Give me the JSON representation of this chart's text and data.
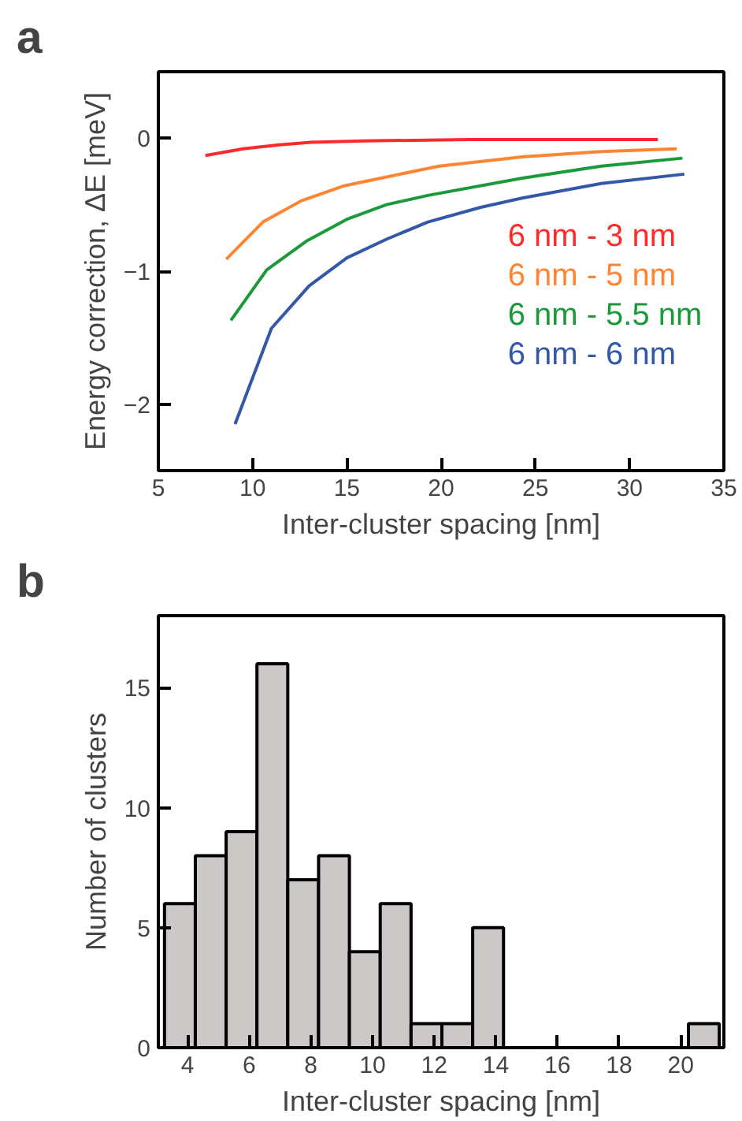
{
  "chart_data": [
    {
      "type": "line",
      "title": "a",
      "xlabel": "Inter-cluster spacing [nm]",
      "ylabel": "Energy correction, ΔE [meV]",
      "xlim": [
        5,
        35
      ],
      "ylim": [
        -2.5,
        0.5
      ],
      "xticks": [
        5,
        10,
        15,
        20,
        25,
        30,
        35
      ],
      "yticks": [
        -2,
        -1,
        0
      ],
      "grid": false,
      "legend": "center right",
      "line_style": "solid",
      "series": [
        {
          "name": "6 nm - 3 nm",
          "color": "#ff2a2a",
          "x": [
            7.5,
            9.5,
            11.4,
            13.1,
            15.9,
            21.5,
            31.5
          ],
          "values": [
            -0.13,
            -0.08,
            -0.05,
            -0.03,
            -0.02,
            -0.01,
            -0.01
          ]
        },
        {
          "name": "6 nm - 5 nm",
          "color": "#ff8533",
          "x": [
            8.6,
            10.55,
            12.6,
            14.8,
            16.8,
            19.9,
            24.3,
            28.5,
            32.5
          ],
          "values": [
            -0.91,
            -0.63,
            -0.47,
            -0.36,
            -0.3,
            -0.21,
            -0.14,
            -0.1,
            -0.08
          ]
        },
        {
          "name": "6 nm - 5.5 nm",
          "color": "#1a9a3a",
          "x": [
            8.85,
            10.75,
            12.9,
            15.0,
            17.1,
            19.3,
            24.3,
            28.5,
            32.8
          ],
          "values": [
            -1.37,
            -0.99,
            -0.77,
            -0.61,
            -0.5,
            -0.43,
            -0.3,
            -0.21,
            -0.15
          ]
        },
        {
          "name": "6 nm - 6 nm",
          "color": "#3358a8",
          "x": [
            9.07,
            11.0,
            13.0,
            15.0,
            17.1,
            19.3,
            22.1,
            24.3,
            28.5,
            32.9
          ],
          "values": [
            -2.15,
            -1.43,
            -1.11,
            -0.9,
            -0.76,
            -0.63,
            -0.52,
            -0.45,
            -0.34,
            -0.27
          ]
        }
      ]
    },
    {
      "type": "histogram",
      "title": "b",
      "xlabel": "Inter-cluster spacing [nm]",
      "ylabel": "Number of clusters",
      "xlim": [
        3.05,
        21.4
      ],
      "ylim": [
        0,
        18
      ],
      "xticks": [
        4,
        6,
        8,
        10,
        12,
        14,
        16,
        18,
        20
      ],
      "yticks": [
        0,
        5,
        10,
        15
      ],
      "grid": false,
      "color": "#cdc8c8",
      "bins": [
        3.25,
        4.25,
        5.25,
        6.25,
        7.25,
        8.25,
        9.25,
        10.25,
        11.25,
        12.25,
        13.25,
        14.25,
        15.25,
        16.25,
        17.25,
        18.25,
        19.25,
        20.25,
        21.25
      ],
      "values": [
        6,
        8,
        9,
        16,
        7,
        8,
        4,
        6,
        1,
        1,
        5,
        0,
        0,
        0,
        0,
        0,
        0,
        1
      ]
    }
  ]
}
